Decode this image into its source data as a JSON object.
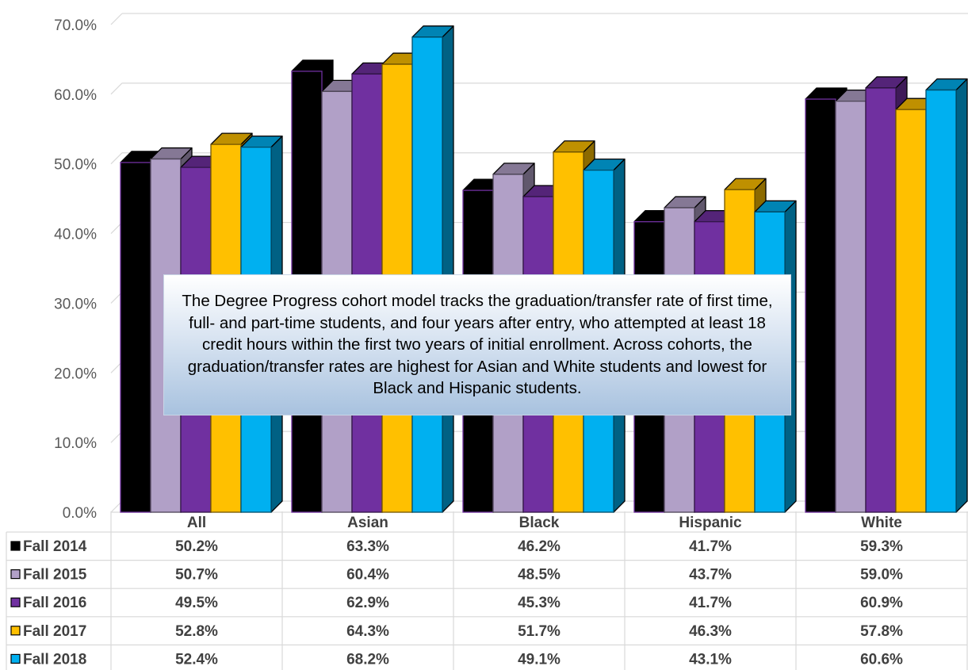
{
  "chart_data": {
    "type": "bar",
    "bar_style": "3d-clustered",
    "categories": [
      "All",
      "Asian",
      "Black",
      "Hispanic",
      "White"
    ],
    "series": [
      {
        "name": "Fall 2014",
        "color": "#000000",
        "values": [
          50.2,
          63.3,
          46.2,
          41.7,
          59.3
        ],
        "labels": [
          "50.2%",
          "63.3%",
          "46.2%",
          "41.7%",
          "59.3%"
        ]
      },
      {
        "name": "Fall 2015",
        "color": "#B1A0C7",
        "values": [
          50.7,
          60.4,
          48.5,
          43.7,
          59.0
        ],
        "labels": [
          "50.7%",
          "60.4%",
          "48.5%",
          "43.7%",
          "59.0%"
        ]
      },
      {
        "name": "Fall 2016",
        "color": "#7030A0",
        "values": [
          49.5,
          62.9,
          45.3,
          41.7,
          60.9
        ],
        "labels": [
          "49.5%",
          "62.9%",
          "45.3%",
          "41.7%",
          "60.9%"
        ]
      },
      {
        "name": "Fall 2017",
        "color": "#FFC000",
        "values": [
          52.8,
          64.3,
          51.7,
          46.3,
          57.8
        ],
        "labels": [
          "52.8%",
          "64.3%",
          "51.7%",
          "46.3%",
          "57.8%"
        ]
      },
      {
        "name": "Fall 2018",
        "color": "#00B0F0",
        "values": [
          52.4,
          68.2,
          49.1,
          43.1,
          60.6
        ],
        "labels": [
          "52.4%",
          "68.2%",
          "49.1%",
          "43.1%",
          "60.6%"
        ]
      }
    ],
    "ylim": [
      0,
      70
    ],
    "yticks": [
      "0.0%",
      "10.0%",
      "20.0%",
      "30.0%",
      "40.0%",
      "50.0%",
      "60.0%",
      "70.0%"
    ],
    "grid": true,
    "legend": "data-table-left",
    "annotation": "The Degree Progress cohort model tracks the graduation/transfer rate of first time, full- and part-time students, and four years after entry, who attempted at least 18 credit hours within the first two years of initial enrollment. Across cohorts, the graduation/transfer rates are highest for Asian and White students and lowest for Black and Hispanic students."
  }
}
